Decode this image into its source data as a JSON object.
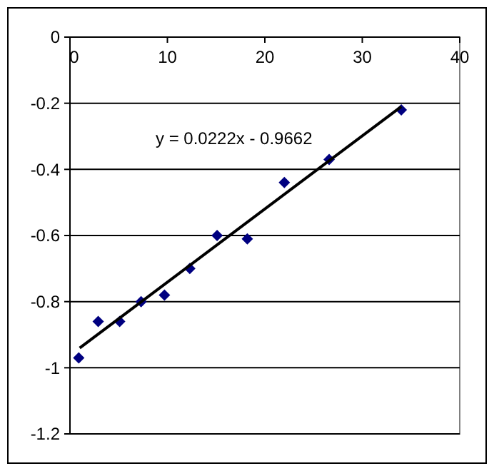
{
  "chart_data": {
    "type": "scatter",
    "xlim": [
      0,
      40
    ],
    "xticks": [
      0,
      10,
      20,
      30,
      40
    ],
    "ylim": [
      -1.2,
      0
    ],
    "yticks": [
      0,
      -0.2,
      -0.4,
      -0.6,
      -0.8,
      -1,
      -1.2
    ],
    "grid": "y",
    "annotations": [
      "y = 0.0222x - 0.9662"
    ],
    "series": [
      {
        "color": "#000080",
        "marker": "diamond",
        "x": [
          0.9,
          2.9,
          5.1,
          7.3,
          9.7,
          12.3,
          15.1,
          18.2,
          22.0,
          26.6,
          34.0
        ],
        "values": [
          -0.97,
          -0.86,
          -0.86,
          -0.8,
          -0.78,
          -0.7,
          -0.6,
          -0.61,
          -0.44,
          -0.37,
          -0.22
        ]
      },
      {
        "type": "line",
        "color": "#000000",
        "line_style": "solid",
        "x": [
          1,
          34
        ],
        "values": [
          -0.94,
          -0.21
        ]
      }
    ]
  }
}
